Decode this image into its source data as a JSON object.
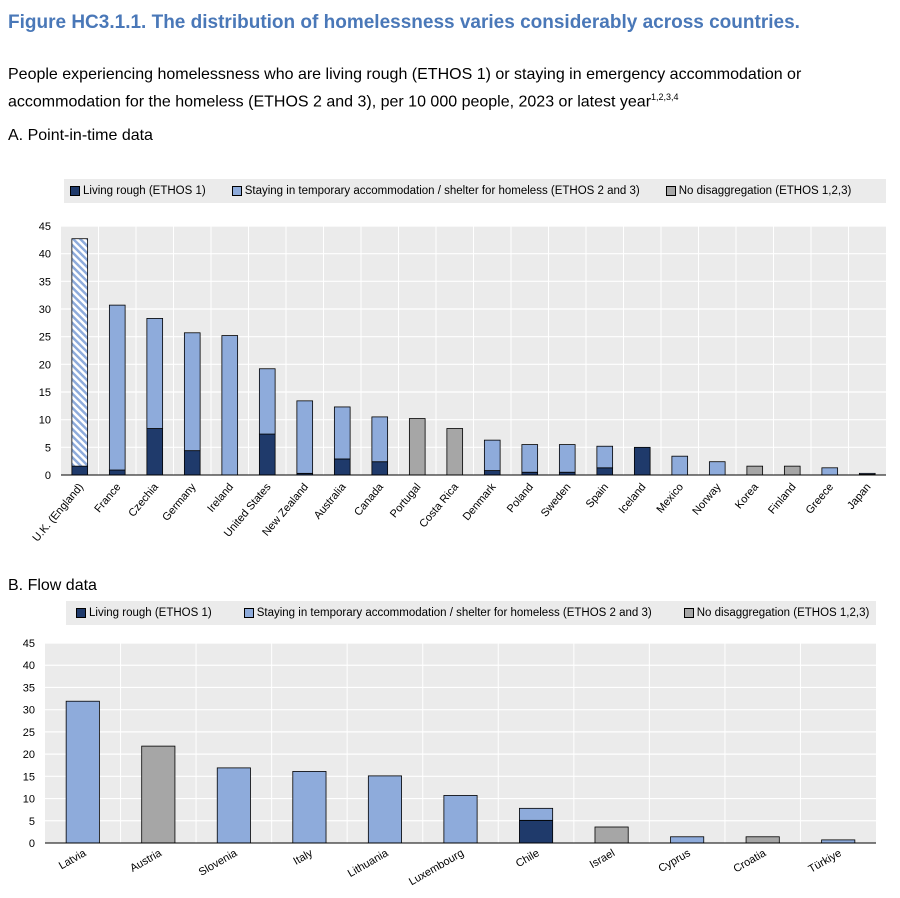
{
  "figure_title": "Figure HC3.1.1. The distribution of homelessness varies considerably across countries.",
  "subtitle": "People experiencing homelessness who are living rough (ETHOS 1) or staying in emergency accommodation or accommodation for the homeless (ETHOS 2 and 3), per 10 000 people, 2023 or latest year",
  "subtitle_sup": "1,2,3,4",
  "colors": {
    "living_rough": "#1f3a6b",
    "temporary": "#8eabdb",
    "no_disaggregation": "#a6a6a6",
    "panel_bg": "#ebebeb",
    "title": "#4a78b8"
  },
  "legend": {
    "living_rough": "Living rough (ETHOS 1)",
    "temporary": "Staying in temporary accommodation / shelter for homeless (ETHOS 2 and 3)",
    "no_disaggregation": "No disaggregation (ETHOS 1,2,3)"
  },
  "chart_data": [
    {
      "type": "bar",
      "stacked": true,
      "panel_label": "A. Point-in-time data",
      "ylim": [
        0,
        45
      ],
      "yticks": [
        0,
        5,
        10,
        15,
        20,
        25,
        30,
        35,
        40,
        45
      ],
      "grid": true,
      "legend_position": "top",
      "categories": [
        "U.K. (England)",
        "France",
        "Czechia",
        "Germany",
        "Ireland",
        "United States",
        "New Zealand",
        "Australia",
        "Canada",
        "Portugal",
        "Costa Rica",
        "Denmark",
        "Poland",
        "Sweden",
        "Spain",
        "Iceland",
        "Mexico",
        "Norway",
        "Korea",
        "Finland",
        "Greece",
        "Japan"
      ],
      "series": [
        {
          "name": "Living rough (ETHOS 1)",
          "key": "living_rough",
          "values": [
            1.6,
            0.9,
            8.4,
            4.4,
            0,
            7.4,
            0.3,
            2.9,
            2.4,
            0,
            0,
            0.8,
            0.5,
            0.5,
            1.3,
            5.0,
            0,
            0,
            0,
            0,
            0,
            0.1
          ]
        },
        {
          "name": "Staying in temporary accommodation / shelter for homeless (ETHOS 2 and 3)",
          "key": "temporary",
          "values": [
            41.1,
            29.8,
            19.9,
            21.3,
            25.2,
            11.8,
            13.1,
            9.4,
            8.1,
            0,
            0,
            5.5,
            5.0,
            5.0,
            3.9,
            0,
            3.4,
            2.4,
            0,
            0,
            1.3,
            0.2
          ]
        },
        {
          "name": "No disaggregation (ETHOS 1,2,3)",
          "key": "no_disaggregation",
          "values": [
            0,
            0,
            0,
            0,
            0,
            0,
            0,
            0,
            0,
            10.2,
            8.4,
            0,
            0,
            0,
            0,
            0,
            0,
            0,
            1.6,
            1.6,
            0,
            0
          ]
        }
      ],
      "hatched_categories": [
        "U.K. (England)"
      ]
    },
    {
      "type": "bar",
      "stacked": true,
      "panel_label": "B. Flow data",
      "ylim": [
        0,
        45
      ],
      "yticks": [
        0,
        5,
        10,
        15,
        20,
        25,
        30,
        35,
        40,
        45
      ],
      "grid": true,
      "legend_position": "top",
      "categories": [
        "Latvia",
        "Austria",
        "Slovenia",
        "Italy",
        "Lithuania",
        "Luxembourg",
        "Chile",
        "Israel",
        "Cyprus",
        "Croatia",
        "Türkiye"
      ],
      "series": [
        {
          "name": "Living rough (ETHOS 1)",
          "key": "living_rough",
          "values": [
            0,
            0,
            0,
            0,
            0,
            0,
            5.1,
            0,
            0,
            0,
            0
          ]
        },
        {
          "name": "Staying in temporary accommodation / shelter for homeless (ETHOS 2 and 3)",
          "key": "temporary",
          "values": [
            31.9,
            0,
            16.9,
            16.1,
            15.1,
            10.7,
            2.7,
            0,
            1.4,
            0,
            0.7
          ]
        },
        {
          "name": "No disaggregation (ETHOS 1,2,3)",
          "key": "no_disaggregation",
          "values": [
            0,
            21.8,
            0,
            0,
            0,
            0,
            0,
            3.6,
            0,
            1.4,
            0
          ]
        }
      ]
    }
  ]
}
